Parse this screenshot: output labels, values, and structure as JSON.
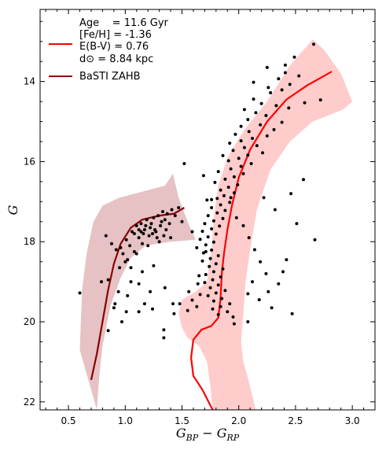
{
  "chart_data": {
    "type": "scatter",
    "title": "",
    "xlabel": "G_{BP} − G_{RP}",
    "ylabel": "G",
    "xlim": [
      0.25,
      3.2
    ],
    "ylim": [
      22.2,
      12.2
    ],
    "y_inverted": true,
    "x_ticks": [
      0.5,
      1.0,
      1.5,
      2.0,
      2.5,
      3.0
    ],
    "x_tick_labels": [
      "0.5",
      "1.0",
      "1.5",
      "2.0",
      "2.5",
      "3.0"
    ],
    "y_ticks": [
      14,
      16,
      18,
      20,
      22
    ],
    "y_tick_labels": [
      "14",
      "16",
      "18",
      "20",
      "22"
    ],
    "grid": false,
    "legend": {
      "placement": "top-left",
      "entries": [
        {
          "lines": [
            "Age    = 11.6 Gyr",
            "[Fe/H] = -1.36",
            "E(B-V) = 0.76",
            "d⊙ = 8.84 kpc"
          ],
          "color": "#ff0000"
        },
        {
          "lines": [
            "BaSTI ZAHB"
          ],
          "color": "#8b0000"
        }
      ]
    },
    "series": [
      {
        "kind": "band",
        "color": "#ffcccc",
        "upper": [
          [
            1.77,
            22.2
          ],
          [
            1.75,
            21.6
          ],
          [
            1.72,
            21.0
          ],
          [
            1.65,
            20.6
          ],
          [
            1.55,
            20.4
          ],
          [
            1.5,
            20.15
          ],
          [
            1.47,
            19.8
          ],
          [
            1.5,
            19.45
          ],
          [
            1.62,
            19.25
          ],
          [
            1.72,
            19.0
          ],
          [
            1.76,
            18.2
          ],
          [
            1.78,
            17.4
          ],
          [
            1.82,
            16.6
          ],
          [
            1.9,
            15.9
          ],
          [
            2.05,
            15.2
          ],
          [
            2.25,
            14.5
          ],
          [
            2.45,
            13.6
          ],
          [
            2.65,
            12.95
          ]
        ],
        "lower": [
          [
            2.15,
            22.2
          ],
          [
            2.08,
            21.4
          ],
          [
            2.04,
            21.0
          ],
          [
            2.02,
            20.5
          ],
          [
            2.04,
            19.8
          ],
          [
            2.06,
            19.0
          ],
          [
            2.1,
            18.2
          ],
          [
            2.16,
            17.2
          ],
          [
            2.28,
            16.2
          ],
          [
            2.45,
            15.5
          ],
          [
            2.65,
            15.0
          ],
          [
            2.92,
            14.7
          ],
          [
            3.0,
            14.5
          ],
          [
            2.9,
            13.8
          ],
          [
            2.75,
            13.2
          ]
        ]
      },
      {
        "kind": "band",
        "color": "#e6c2c4",
        "upper": [
          [
            0.6,
            20.7
          ],
          [
            0.62,
            19.2
          ],
          [
            0.66,
            18.3
          ],
          [
            0.72,
            17.5
          ],
          [
            0.8,
            17.1
          ],
          [
            0.95,
            16.9
          ],
          [
            1.15,
            16.75
          ],
          [
            1.35,
            16.6
          ],
          [
            1.42,
            16.3
          ]
        ],
        "lower": [
          [
            0.75,
            22.2
          ],
          [
            0.77,
            21.4
          ],
          [
            0.8,
            20.6
          ],
          [
            0.87,
            19.6
          ],
          [
            0.96,
            18.9
          ],
          [
            1.05,
            18.4
          ],
          [
            1.18,
            18.1
          ],
          [
            1.4,
            18.0
          ],
          [
            1.62,
            17.95
          ],
          [
            1.55,
            17.5
          ],
          [
            1.47,
            16.9
          ],
          [
            1.42,
            16.3
          ]
        ]
      },
      {
        "kind": "line",
        "name": "isochrone",
        "color": "#ff0000",
        "points": [
          [
            1.77,
            22.2
          ],
          [
            1.68,
            21.7
          ],
          [
            1.6,
            21.35
          ],
          [
            1.58,
            20.9
          ],
          [
            1.6,
            20.45
          ],
          [
            1.67,
            20.2
          ],
          [
            1.76,
            20.1
          ],
          [
            1.82,
            19.9
          ],
          [
            1.84,
            19.4
          ],
          [
            1.85,
            18.8
          ],
          [
            1.87,
            18.3
          ],
          [
            1.9,
            17.7
          ],
          [
            1.94,
            17.1
          ],
          [
            2.0,
            16.4
          ],
          [
            2.1,
            15.7
          ],
          [
            2.25,
            15.0
          ],
          [
            2.42,
            14.45
          ],
          [
            2.6,
            14.1
          ],
          [
            2.82,
            13.75
          ]
        ]
      },
      {
        "kind": "line",
        "name": "BaSTI ZAHB",
        "color": "#8b0000",
        "points": [
          [
            0.7,
            21.45
          ],
          [
            0.75,
            20.8
          ],
          [
            0.8,
            20.0
          ],
          [
            0.85,
            19.2
          ],
          [
            0.9,
            18.55
          ],
          [
            0.96,
            18.05
          ],
          [
            1.05,
            17.65
          ],
          [
            1.15,
            17.45
          ],
          [
            1.3,
            17.35
          ],
          [
            1.43,
            17.3
          ],
          [
            1.52,
            17.15
          ]
        ]
      }
    ],
    "points": [
      [
        2.66,
        13.07
      ],
      [
        2.49,
        13.39
      ],
      [
        2.41,
        13.59
      ],
      [
        2.25,
        13.65
      ],
      [
        2.41,
        13.78
      ],
      [
        2.53,
        13.86
      ],
      [
        2.35,
        13.93
      ],
      [
        2.13,
        14.02
      ],
      [
        2.45,
        14.07
      ],
      [
        2.26,
        14.15
      ],
      [
        2.38,
        14.21
      ],
      [
        2.28,
        14.28
      ],
      [
        2.13,
        14.44
      ],
      [
        2.72,
        14.46
      ],
      [
        2.58,
        14.53
      ],
      [
        2.2,
        14.55
      ],
      [
        2.33,
        14.6
      ],
      [
        2.44,
        14.66
      ],
      [
        2.05,
        14.7
      ],
      [
        2.15,
        14.78
      ],
      [
        2.24,
        14.85
      ],
      [
        2.08,
        14.95
      ],
      [
        2.38,
        15.02
      ],
      [
        2.19,
        15.08
      ],
      [
        2.02,
        15.12
      ],
      [
        2.31,
        15.2
      ],
      [
        2.09,
        15.25
      ],
      [
        1.97,
        15.32
      ],
      [
        2.25,
        15.36
      ],
      [
        2.12,
        15.42
      ],
      [
        2.02,
        15.48
      ],
      [
        1.92,
        15.54
      ],
      [
        2.16,
        15.6
      ],
      [
        2.05,
        15.65
      ],
      [
        1.95,
        15.72
      ],
      [
        2.21,
        15.78
      ],
      [
        2.08,
        15.84
      ],
      [
        1.86,
        15.85
      ],
      [
        2.0,
        15.92
      ],
      [
        1.91,
        15.98
      ],
      [
        2.11,
        16.05
      ],
      [
        2.02,
        16.12
      ],
      [
        1.93,
        16.18
      ],
      [
        1.82,
        16.25
      ],
      [
        2.04,
        16.3
      ],
      [
        1.96,
        16.38
      ],
      [
        1.88,
        16.44
      ],
      [
        1.79,
        16.52
      ],
      [
        1.99,
        16.58
      ],
      [
        1.91,
        16.64
      ],
      [
        1.84,
        16.71
      ],
      [
        1.96,
        16.78
      ],
      [
        1.87,
        16.85
      ],
      [
        1.81,
        16.92
      ],
      [
        1.72,
        16.96
      ],
      [
        1.92,
        17.02
      ],
      [
        1.84,
        17.08
      ],
      [
        1.76,
        17.15
      ],
      [
        1.88,
        17.22
      ],
      [
        1.81,
        17.28
      ],
      [
        1.73,
        17.35
      ],
      [
        1.86,
        17.42
      ],
      [
        1.78,
        17.48
      ],
      [
        1.7,
        17.55
      ],
      [
        1.83,
        17.61
      ],
      [
        1.76,
        17.68
      ],
      [
        1.68,
        17.74
      ],
      [
        1.8,
        17.81
      ],
      [
        1.73,
        17.88
      ],
      [
        1.66,
        17.94
      ],
      [
        1.78,
        18.01
      ],
      [
        1.71,
        18.08
      ],
      [
        1.63,
        18.15
      ],
      [
        1.76,
        18.21
      ],
      [
        1.69,
        18.28
      ],
      [
        1.82,
        18.35
      ],
      [
        1.75,
        18.42
      ],
      [
        1.68,
        18.48
      ],
      [
        1.8,
        18.55
      ],
      [
        1.74,
        18.62
      ],
      [
        1.86,
        18.68
      ],
      [
        1.78,
        18.75
      ],
      [
        1.71,
        18.82
      ],
      [
        1.84,
        18.88
      ],
      [
        1.77,
        18.95
      ],
      [
        1.7,
        19.02
      ],
      [
        1.82,
        19.08
      ],
      [
        1.75,
        19.15
      ],
      [
        1.88,
        19.22
      ],
      [
        1.8,
        19.28
      ],
      [
        1.73,
        19.35
      ],
      [
        1.85,
        19.42
      ],
      [
        1.78,
        19.48
      ],
      [
        1.92,
        19.55
      ],
      [
        1.84,
        19.62
      ],
      [
        1.77,
        19.68
      ],
      [
        1.9,
        19.75
      ],
      [
        1.82,
        19.82
      ],
      [
        1.95,
        19.88
      ],
      [
        1.59,
        19.46
      ],
      [
        1.63,
        19.62
      ],
      [
        1.55,
        19.72
      ],
      [
        1.66,
        19.32
      ],
      [
        1.93,
        16.9
      ],
      [
        1.98,
        17.4
      ],
      [
        2.04,
        17.6
      ],
      [
        2.09,
        17.9
      ],
      [
        2.14,
        18.2
      ],
      [
        2.19,
        18.5
      ],
      [
        2.24,
        18.8
      ],
      [
        2.12,
        19.0
      ],
      [
        2.08,
        19.3
      ],
      [
        2.18,
        19.45
      ],
      [
        2.29,
        19.65
      ],
      [
        2.35,
        19.05
      ],
      [
        2.42,
        18.45
      ],
      [
        2.51,
        17.55
      ],
      [
        2.32,
        17.2
      ],
      [
        2.46,
        16.8
      ],
      [
        2.22,
        16.9
      ],
      [
        2.57,
        16.45
      ],
      [
        2.67,
        17.95
      ],
      [
        2.39,
        18.75
      ],
      [
        2.26,
        19.25
      ],
      [
        2.47,
        19.8
      ],
      [
        2.08,
        20.0
      ],
      [
        1.96,
        20.05
      ],
      [
        1.52,
        16.05
      ],
      [
        1.69,
        16.35
      ],
      [
        1.76,
        16.95
      ],
      [
        1.59,
        17.75
      ],
      [
        1.71,
        18.25
      ],
      [
        1.65,
        18.85
      ],
      [
        1.64,
        19.05
      ],
      [
        1.56,
        19.25
      ],
      [
        1.48,
        19.55
      ],
      [
        1.43,
        19.8
      ],
      [
        0.83,
        17.85
      ],
      [
        0.88,
        18.05
      ],
      [
        0.92,
        18.2
      ],
      [
        0.96,
        18.15
      ],
      [
        0.98,
        18.3
      ],
      [
        1.01,
        17.95
      ],
      [
        1.02,
        18.45
      ],
      [
        1.04,
        18.1
      ],
      [
        1.06,
        17.75
      ],
      [
        1.08,
        18.25
      ],
      [
        1.1,
        17.6
      ],
      [
        1.12,
        17.9
      ],
      [
        1.14,
        17.55
      ],
      [
        1.15,
        18.05
      ],
      [
        1.17,
        17.7
      ],
      [
        1.19,
        17.45
      ],
      [
        1.21,
        17.85
      ],
      [
        1.23,
        17.55
      ],
      [
        1.25,
        17.4
      ],
      [
        1.27,
        17.75
      ],
      [
        1.29,
        17.35
      ],
      [
        1.31,
        17.6
      ],
      [
        1.33,
        17.25
      ],
      [
        1.35,
        17.45
      ],
      [
        1.37,
        17.3
      ],
      [
        1.39,
        17.55
      ],
      [
        1.41,
        17.2
      ],
      [
        1.44,
        17.35
      ],
      [
        1.47,
        17.15
      ],
      [
        1.5,
        17.5
      ],
      [
        1.34,
        17.85
      ],
      [
        1.3,
        18.0
      ],
      [
        1.2,
        18.1
      ],
      [
        1.1,
        18.3
      ],
      [
        1.0,
        18.5
      ],
      [
        0.95,
        18.65
      ],
      [
        1.18,
        17.6
      ],
      [
        1.22,
        17.65
      ],
      [
        1.26,
        17.7
      ],
      [
        1.12,
        17.7
      ],
      [
        1.08,
        17.8
      ],
      [
        1.14,
        17.75
      ],
      [
        1.16,
        17.8
      ],
      [
        1.24,
        17.8
      ],
      [
        1.28,
        17.9
      ],
      [
        1.32,
        17.5
      ],
      [
        1.36,
        17.7
      ],
      [
        1.4,
        17.9
      ],
      [
        0.6,
        19.28
      ],
      [
        0.79,
        19.0
      ],
      [
        0.85,
        18.95
      ],
      [
        0.94,
        19.25
      ],
      [
        1.02,
        19.35
      ],
      [
        1.12,
        19.05
      ],
      [
        1.22,
        19.25
      ],
      [
        1.35,
        19.15
      ],
      [
        0.91,
        19.55
      ],
      [
        1.01,
        19.75
      ],
      [
        0.97,
        20.0
      ],
      [
        1.12,
        19.75
      ],
      [
        1.17,
        19.55
      ],
      [
        1.24,
        19.68
      ],
      [
        1.42,
        19.55
      ],
      [
        1.34,
        20.2
      ],
      [
        1.34,
        20.4
      ],
      [
        0.85,
        20.22
      ],
      [
        0.9,
        19.65
      ],
      [
        1.05,
        19.0
      ],
      [
        1.15,
        18.75
      ],
      [
        1.25,
        18.6
      ],
      [
        1.05,
        18.65
      ]
    ]
  }
}
